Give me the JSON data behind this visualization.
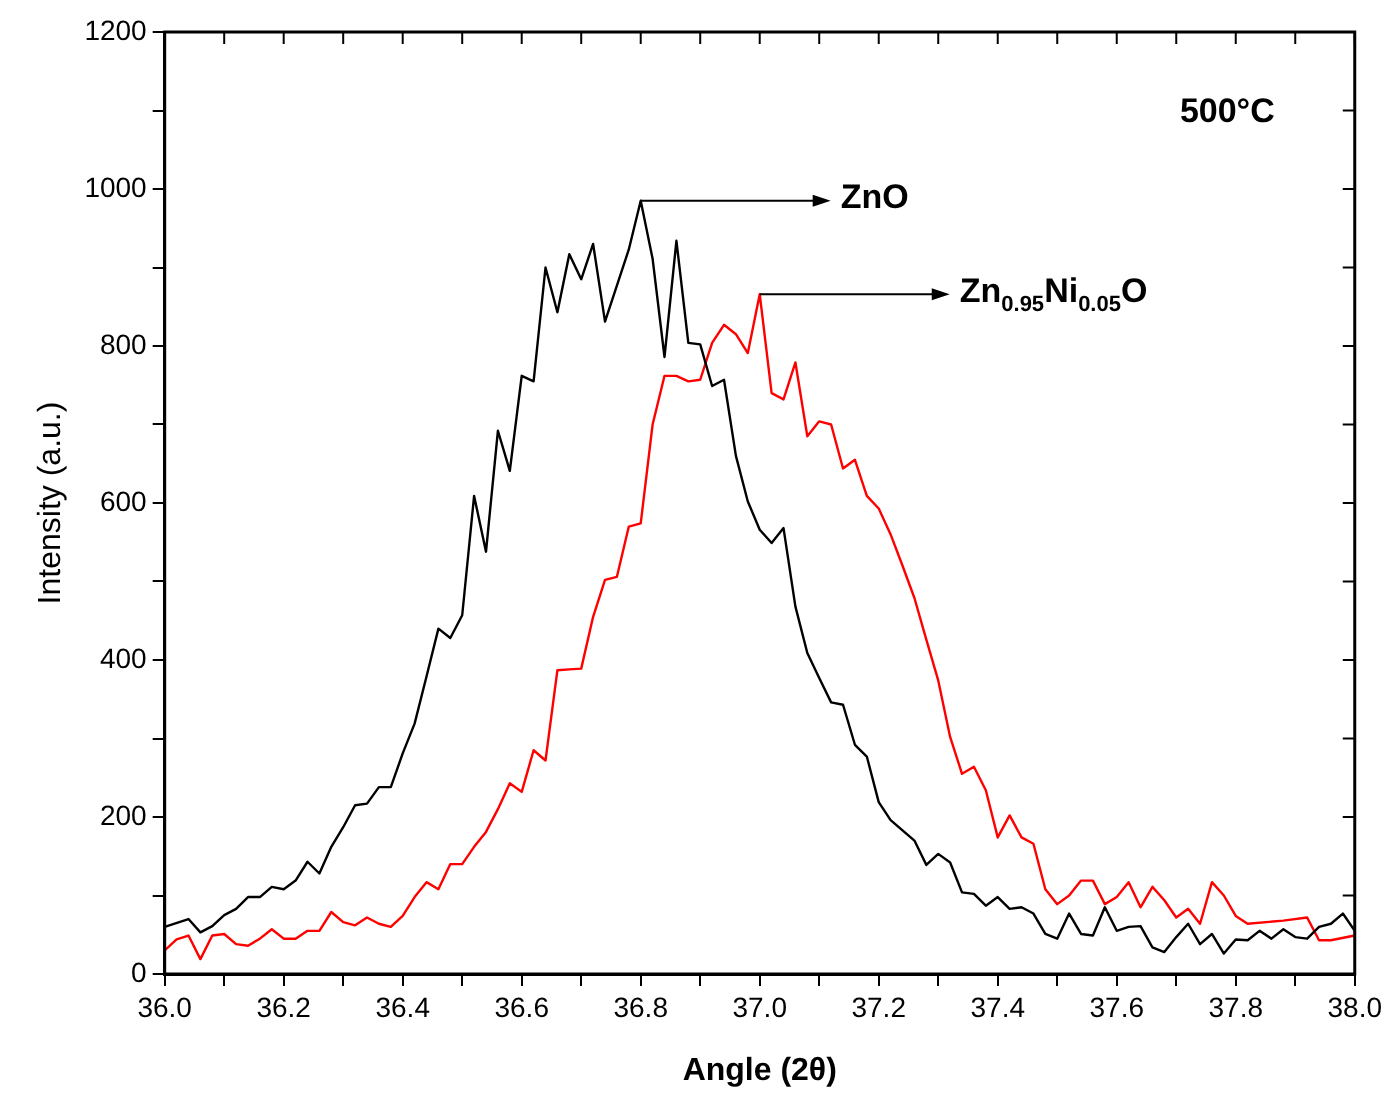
{
  "chart_data": {
    "type": "line",
    "xlabel": "Angle (2θ)",
    "ylabel": "Intensity (a.u.)",
    "annotations": [
      "500°C",
      {
        "text": "ZnO",
        "x": 36.8,
        "y": 985
      },
      {
        "text": "Zn$_{0.95}$Ni$_{0.05}$O",
        "x": 37.0,
        "y": 866
      }
    ],
    "xlim": [
      36.0,
      38.0
    ],
    "xticks": [
      {
        "value": 36.0,
        "label": "36.0"
      },
      {
        "value": 36.1,
        "label": null
      },
      {
        "value": 36.2,
        "label": "36.2"
      },
      {
        "value": 36.3,
        "label": null
      },
      {
        "value": 36.4,
        "label": "36.4"
      },
      {
        "value": 36.5,
        "label": null
      },
      {
        "value": 36.6,
        "label": "36.6"
      },
      {
        "value": 36.7,
        "label": null
      },
      {
        "value": 36.8,
        "label": "36.8"
      },
      {
        "value": 36.9,
        "label": null
      },
      {
        "value": 37.0,
        "label": "37.0"
      },
      {
        "value": 37.1,
        "label": null
      },
      {
        "value": 37.2,
        "label": "37.2"
      },
      {
        "value": 37.3,
        "label": null
      },
      {
        "value": 37.4,
        "label": "37.4"
      },
      {
        "value": 37.5,
        "label": null
      },
      {
        "value": 37.6,
        "label": "37.6"
      },
      {
        "value": 37.7,
        "label": null
      },
      {
        "value": 37.8,
        "label": "37.8"
      },
      {
        "value": 37.9,
        "label": null
      },
      {
        "value": 38.0,
        "label": "38.0"
      }
    ],
    "ylim": [
      0,
      1200
    ],
    "yticks": [
      0,
      {
        "value": 100,
        "label": null
      },
      200,
      {
        "value": 300,
        "label": null
      },
      400,
      {
        "value": 500,
        "label": null
      },
      600,
      {
        "value": 700,
        "label": null
      },
      800,
      {
        "value": 900,
        "label": null
      },
      1000,
      {
        "value": 1100,
        "label": null
      },
      1200
    ],
    "marker": "none",
    "line_style": "solid",
    "series": [
      {
        "color": "#000000",
        "x": [
          36.0,
          36.04,
          36.06,
          36.08,
          36.1,
          36.12,
          36.14,
          36.16,
          36.18,
          36.2,
          36.22,
          36.24,
          36.26,
          36.28,
          36.3,
          36.32,
          36.34,
          36.36,
          36.38,
          36.4,
          36.42,
          36.44,
          36.46,
          36.48,
          36.5,
          36.52,
          36.54,
          36.56,
          36.58,
          36.6,
          36.62,
          36.64,
          36.66,
          36.68,
          36.7,
          36.72,
          36.74,
          36.78,
          36.8,
          36.82,
          36.84,
          36.86,
          36.88,
          36.9,
          36.92,
          36.94,
          36.96,
          36.98,
          37.0,
          37.02,
          37.04,
          37.06,
          37.08,
          37.1,
          37.12,
          37.14,
          37.16,
          37.18,
          37.2,
          37.22,
          37.24,
          37.26,
          37.28,
          37.3,
          37.32,
          37.34,
          37.36,
          37.38,
          37.4,
          37.42,
          37.44,
          37.46,
          37.48,
          37.5,
          37.52,
          37.54,
          37.56,
          37.58,
          37.6,
          37.62,
          37.64,
          37.66,
          37.68,
          37.7,
          37.72,
          37.74,
          37.76,
          37.78,
          37.8,
          37.82,
          37.84,
          37.86,
          37.88,
          37.9,
          37.92,
          37.94,
          37.96,
          37.98,
          38.0
        ],
        "values": [
          60,
          70,
          53,
          61,
          75,
          83,
          98,
          98,
          111,
          108,
          119,
          143,
          128,
          162,
          187,
          215,
          217,
          238,
          238,
          281,
          319,
          379,
          440,
          428,
          457,
          609,
          538,
          692,
          641,
          762,
          755,
          900,
          843,
          917,
          885,
          930,
          831,
          923,
          985,
          911,
          786,
          934,
          804,
          802,
          749,
          757,
          660,
          602,
          566,
          549,
          568,
          468,
          409,
          377,
          346,
          343,
          292,
          277,
          219,
          196,
          183,
          170,
          139,
          153,
          142,
          104,
          102,
          87,
          98,
          83,
          85,
          77,
          51,
          45,
          77,
          51,
          49,
          85,
          55,
          60,
          61,
          34,
          28,
          47,
          64,
          38,
          51,
          26,
          44,
          43,
          55,
          45,
          57,
          47,
          45,
          60,
          64,
          77,
          55
        ]
      },
      {
        "color": "#ff0000",
        "x": [
          36.0,
          36.02,
          36.04,
          36.06,
          36.08,
          36.1,
          36.12,
          36.14,
          36.16,
          36.18,
          36.2,
          36.22,
          36.24,
          36.26,
          36.28,
          36.3,
          36.32,
          36.34,
          36.36,
          36.38,
          36.4,
          36.42,
          36.44,
          36.46,
          36.48,
          36.5,
          36.52,
          36.54,
          36.56,
          36.58,
          36.6,
          36.62,
          36.64,
          36.66,
          36.68,
          36.7,
          36.72,
          36.74,
          36.76,
          36.78,
          36.8,
          36.82,
          36.84,
          36.86,
          36.88,
          36.9,
          36.92,
          36.94,
          36.96,
          36.98,
          37.0,
          37.02,
          37.04,
          37.06,
          37.08,
          37.1,
          37.12,
          37.14,
          37.16,
          37.18,
          37.2,
          37.22,
          37.24,
          37.26,
          37.28,
          37.3,
          37.32,
          37.34,
          37.36,
          37.38,
          37.4,
          37.42,
          37.44,
          37.46,
          37.48,
          37.5,
          37.52,
          37.54,
          37.56,
          37.58,
          37.6,
          37.62,
          37.64,
          37.66,
          37.68,
          37.7,
          37.72,
          37.74,
          37.76,
          37.78,
          37.8,
          37.82,
          37.88,
          37.92,
          37.94,
          37.96,
          38.0
        ],
        "values": [
          30,
          44,
          49,
          19,
          49,
          51,
          38,
          36,
          45,
          57,
          45,
          45,
          55,
          55,
          79,
          66,
          62,
          72,
          64,
          60,
          74,
          98,
          117,
          108,
          140,
          140,
          162,
          181,
          210,
          243,
          232,
          285,
          272,
          387,
          388,
          389,
          455,
          502,
          506,
          570,
          574,
          700,
          762,
          762,
          755,
          757,
          804,
          827,
          815,
          791,
          866,
          740,
          732,
          779,
          685,
          704,
          700,
          644,
          655,
          609,
          593,
          560,
          520,
          479,
          426,
          374,
          302,
          255,
          264,
          234,
          174,
          202,
          174,
          166,
          108,
          89,
          100,
          119,
          119,
          89,
          98,
          117,
          85,
          111,
          94,
          72,
          83,
          64,
          117,
          100,
          74,
          64,
          68,
          72,
          43,
          43,
          49
        ]
      }
    ]
  }
}
